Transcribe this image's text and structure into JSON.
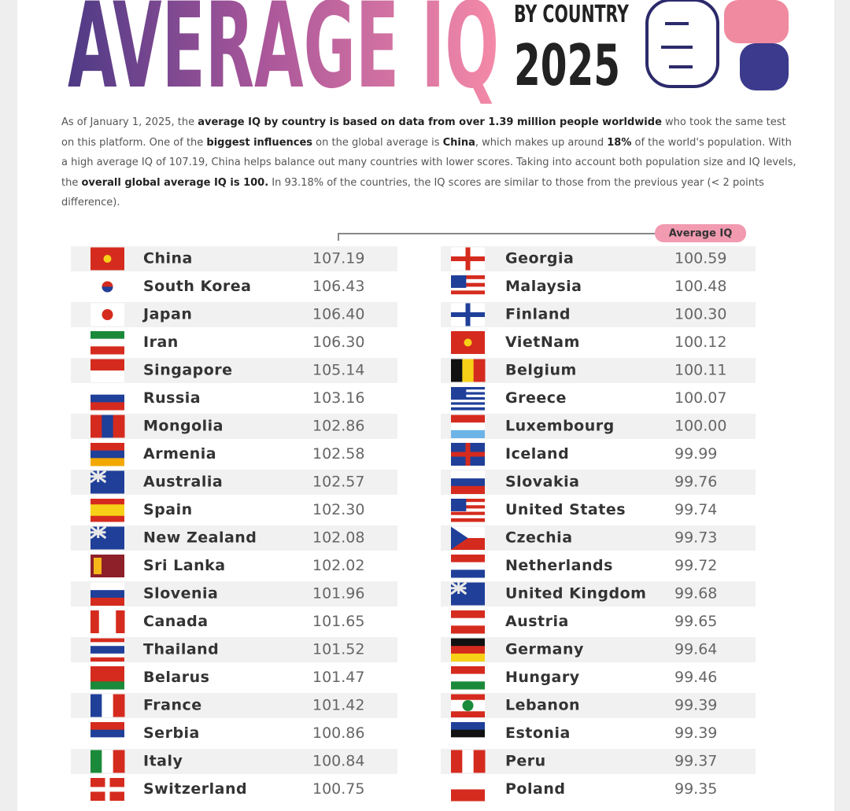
{
  "header": {
    "title": "AVERAGE IQ",
    "subtitle": "BY COUNTRY",
    "year": "2025"
  },
  "intro": [
    {
      "text": "As of January 1, 2025, the ",
      "bold": false
    },
    {
      "text": "average IQ by country is based on data from over 1.39 million people worldwide",
      "bold": true
    },
    {
      "text": " who took the same test on this platform. One of the ",
      "bold": false
    },
    {
      "text": "biggest influences",
      "bold": true
    },
    {
      "text": " on the global average is ",
      "bold": false
    },
    {
      "text": "China",
      "bold": true
    },
    {
      "text": ", which makes up around ",
      "bold": false
    },
    {
      "text": "18%",
      "bold": true
    },
    {
      "text": " of the world's population. With a high average IQ of 107.19, China helps balance out many countries with lower scores. Taking into account both population size and IQ levels, the ",
      "bold": false
    },
    {
      "text": "overall global average IQ is 100.",
      "bold": true
    },
    {
      "text": " In 93.18% of the countries, the IQ scores are similar to those from the previous year (< 2 points difference).",
      "bold": false
    }
  ],
  "table": {
    "column_label": "Average IQ",
    "left": [
      {
        "country": "China",
        "iq": "107.19"
      },
      {
        "country": "South Korea",
        "iq": "106.43"
      },
      {
        "country": "Japan",
        "iq": "106.40"
      },
      {
        "country": "Iran",
        "iq": "106.30"
      },
      {
        "country": "Singapore",
        "iq": "105.14"
      },
      {
        "country": "Russia",
        "iq": "103.16"
      },
      {
        "country": "Mongolia",
        "iq": "102.86"
      },
      {
        "country": "Armenia",
        "iq": "102.58"
      },
      {
        "country": "Australia",
        "iq": "102.57"
      },
      {
        "country": "Spain",
        "iq": "102.30"
      },
      {
        "country": "New Zealand",
        "iq": "102.08"
      },
      {
        "country": "Sri Lanka",
        "iq": "102.02"
      },
      {
        "country": "Slovenia",
        "iq": "101.96"
      },
      {
        "country": "Canada",
        "iq": "101.65"
      },
      {
        "country": "Thailand",
        "iq": "101.52"
      },
      {
        "country": "Belarus",
        "iq": "101.47"
      },
      {
        "country": "France",
        "iq": "101.42"
      },
      {
        "country": "Serbia",
        "iq": "100.86"
      },
      {
        "country": "Italy",
        "iq": "100.84"
      },
      {
        "country": "Switzerland",
        "iq": "100.75"
      }
    ],
    "right": [
      {
        "country": "Georgia",
        "iq": "100.59"
      },
      {
        "country": "Malaysia",
        "iq": "100.48"
      },
      {
        "country": "Finland",
        "iq": "100.30"
      },
      {
        "country": "VietNam",
        "iq": "100.12"
      },
      {
        "country": "Belgium",
        "iq": "100.11"
      },
      {
        "country": "Greece",
        "iq": "100.07"
      },
      {
        "country": "Luxembourg",
        "iq": "100.00"
      },
      {
        "country": "Iceland",
        "iq": "99.99"
      },
      {
        "country": "Slovakia",
        "iq": "99.76"
      },
      {
        "country": "United States",
        "iq": "99.74"
      },
      {
        "country": "Czechia",
        "iq": "99.73"
      },
      {
        "country": "Netherlands",
        "iq": "99.72"
      },
      {
        "country": "United Kingdom",
        "iq": "99.68"
      },
      {
        "country": "Austria",
        "iq": "99.65"
      },
      {
        "country": "Germany",
        "iq": "99.64"
      },
      {
        "country": "Hungary",
        "iq": "99.46"
      },
      {
        "country": "Lebanon",
        "iq": "99.39"
      },
      {
        "country": "Estonia",
        "iq": "99.39"
      },
      {
        "country": "Peru",
        "iq": "99.37"
      },
      {
        "country": "Poland",
        "iq": "99.35"
      }
    ]
  }
}
